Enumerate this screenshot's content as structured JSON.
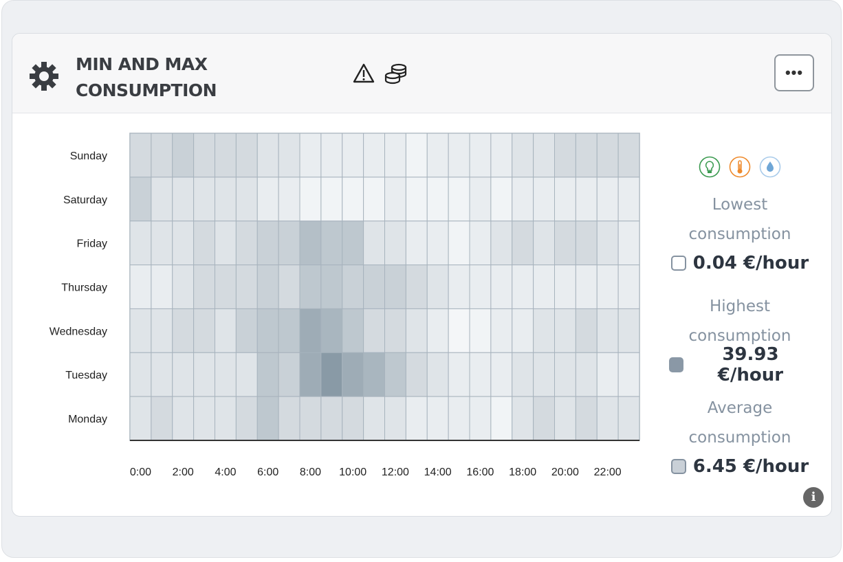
{
  "header": {
    "title": "MIN AND MAX\nCONSUMPTION",
    "icons": [
      "gear-icon",
      "warning-icon",
      "coins-icon"
    ],
    "menu_label": "•••"
  },
  "legend": {
    "category_icons": [
      {
        "name": "lightbulb-icon",
        "color": "#3a9a4f"
      },
      {
        "name": "thermometer-icon",
        "color": "#ee8a2c"
      },
      {
        "name": "water-drop-icon",
        "color": "#8ab8e0"
      }
    ],
    "lowest_label": "Lowest consumption",
    "lowest_value": "0.04 €/hour",
    "highest_label": "Highest consumption",
    "highest_value": "39.93 €/hour",
    "average_label": "Average consumption",
    "average_value": "6.45 €/hour"
  },
  "chart_data": {
    "type": "heatmap",
    "unit": "€/hour",
    "x_categories": [
      "0:00",
      "1:00",
      "2:00",
      "3:00",
      "4:00",
      "5:00",
      "6:00",
      "7:00",
      "8:00",
      "9:00",
      "10:00",
      "11:00",
      "12:00",
      "13:00",
      "14:00",
      "15:00",
      "16:00",
      "17:00",
      "18:00",
      "19:00",
      "20:00",
      "21:00",
      "22:00",
      "23:00"
    ],
    "x_tick_labels": [
      "0:00",
      "2:00",
      "4:00",
      "6:00",
      "8:00",
      "10:00",
      "12:00",
      "14:00",
      "16:00",
      "18:00",
      "20:00",
      "22:00"
    ],
    "y_categories": [
      "Sunday",
      "Saturday",
      "Friday",
      "Thursday",
      "Wednesday",
      "Tuesday",
      "Monday"
    ],
    "values": [
      [
        12,
        12,
        16,
        12,
        12,
        12,
        8,
        8,
        4,
        4,
        4,
        4,
        4,
        1,
        4,
        4,
        4,
        4,
        8,
        8,
        12,
        12,
        12,
        12
      ],
      [
        16,
        8,
        8,
        8,
        8,
        8,
        4,
        4,
        1,
        1,
        1,
        1,
        4,
        1,
        1,
        1,
        4,
        1,
        4,
        4,
        4,
        4,
        4,
        4
      ],
      [
        8,
        8,
        8,
        12,
        8,
        12,
        16,
        16,
        24,
        20,
        20,
        8,
        8,
        4,
        4,
        1,
        4,
        8,
        12,
        8,
        12,
        12,
        8,
        4
      ],
      [
        4,
        4,
        8,
        12,
        12,
        12,
        16,
        12,
        20,
        20,
        16,
        16,
        16,
        12,
        8,
        4,
        4,
        4,
        4,
        4,
        4,
        4,
        4,
        4
      ],
      [
        8,
        8,
        12,
        12,
        8,
        16,
        20,
        20,
        32,
        28,
        20,
        12,
        12,
        8,
        4,
        0.04,
        1,
        4,
        4,
        8,
        8,
        12,
        8,
        8
      ],
      [
        8,
        8,
        8,
        8,
        8,
        8,
        20,
        16,
        32,
        39.93,
        32,
        28,
        20,
        12,
        8,
        4,
        4,
        4,
        8,
        8,
        8,
        8,
        4,
        4
      ],
      [
        8,
        12,
        8,
        8,
        8,
        12,
        20,
        12,
        12,
        12,
        12,
        8,
        8,
        4,
        4,
        4,
        4,
        1,
        8,
        12,
        8,
        12,
        8,
        8
      ]
    ],
    "color_min": "#f4f6f8",
    "color_max": "#899aa6",
    "value_range": [
      0.04,
      39.93
    ]
  }
}
